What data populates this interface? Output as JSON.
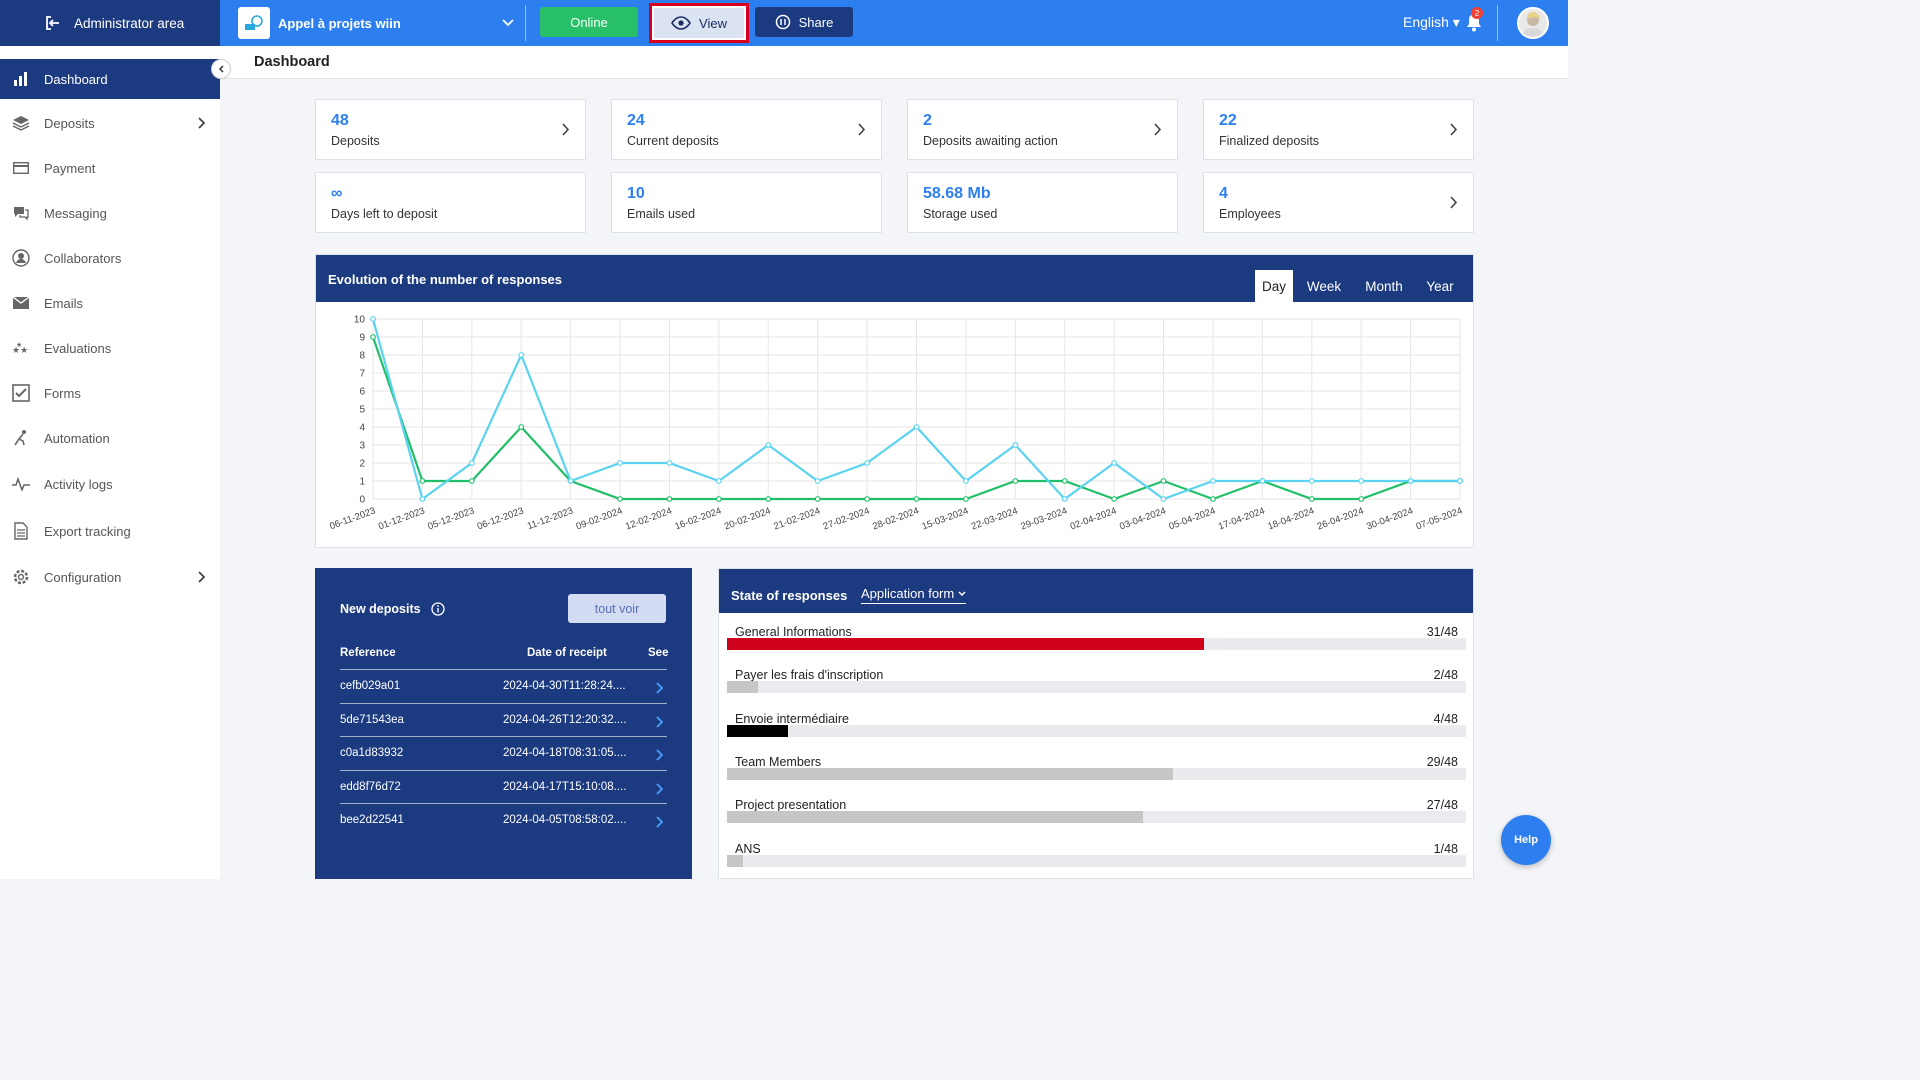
{
  "topbar": {
    "admin_label": "Administrator area",
    "project_name": "Appel à projets wiin",
    "online_label": "Online",
    "view_label": "View",
    "share_label": "Share",
    "language": "English",
    "notification_count": "2"
  },
  "sidebar": {
    "items": [
      {
        "label": "Dashboard",
        "icon": "bar-chart-icon",
        "active": true
      },
      {
        "label": "Deposits",
        "icon": "layers-icon",
        "has_submenu": true
      },
      {
        "label": "Payment",
        "icon": "credit-card-icon"
      },
      {
        "label": "Messaging",
        "icon": "chat-icon"
      },
      {
        "label": "Collaborators",
        "icon": "user-circle-icon"
      },
      {
        "label": "Emails",
        "icon": "envelope-icon"
      },
      {
        "label": "Evaluations",
        "icon": "stars-icon"
      },
      {
        "label": "Forms",
        "icon": "checkbox-icon"
      },
      {
        "label": "Automation",
        "icon": "automation-icon"
      },
      {
        "label": "Activity logs",
        "icon": "pulse-icon"
      },
      {
        "label": "Export tracking",
        "icon": "document-icon"
      },
      {
        "label": "Configuration",
        "icon": "gear-icon",
        "has_submenu": true
      }
    ]
  },
  "page": {
    "title": "Dashboard"
  },
  "stats": [
    {
      "value": "48",
      "label": "Deposits",
      "link": true
    },
    {
      "value": "24",
      "label": "Current deposits",
      "link": true
    },
    {
      "value": "2",
      "label": "Deposits awaiting action",
      "link": true
    },
    {
      "value": "22",
      "label": "Finalized deposits",
      "link": true
    },
    {
      "value": "∞",
      "label": "Days left to deposit",
      "link": false
    },
    {
      "value": "10",
      "label": "Emails used",
      "link": false
    },
    {
      "value": "58.68 Mb",
      "label": "Storage used",
      "link": false
    },
    {
      "value": "4",
      "label": "Employees",
      "link": true
    }
  ],
  "chart_panel": {
    "title": "Evolution of the number of responses",
    "tabs": [
      "Day",
      "Week",
      "Month",
      "Year"
    ],
    "active_tab": "Day"
  },
  "chart_data": {
    "type": "line",
    "categories": [
      "06-11-2023",
      "01-12-2023",
      "05-12-2023",
      "06-12-2023",
      "11-12-2023",
      "09-02-2024",
      "12-02-2024",
      "16-02-2024",
      "20-02-2024",
      "21-02-2024",
      "27-02-2024",
      "28-02-2024",
      "15-03-2024",
      "22-03-2024",
      "29-03-2024",
      "02-04-2024",
      "03-04-2024",
      "05-04-2024",
      "17-04-2024",
      "18-04-2024",
      "26-04-2024",
      "30-04-2024",
      "07-05-2024"
    ],
    "series": [
      {
        "color": "#5bd3f0",
        "values": [
          10,
          0,
          2,
          8,
          1,
          2,
          2,
          1,
          3,
          1,
          2,
          4,
          1,
          3,
          0,
          2,
          0,
          1,
          1,
          1,
          1,
          1,
          1
        ]
      },
      {
        "color": "#22bf6a",
        "values": [
          9,
          1,
          1,
          4,
          1,
          0,
          0,
          0,
          0,
          0,
          0,
          0,
          0,
          1,
          1,
          0,
          1,
          0,
          1,
          0,
          0,
          1,
          1
        ]
      }
    ],
    "ylim": [
      0,
      10
    ],
    "yticks": [
      0,
      1,
      2,
      3,
      4,
      5,
      6,
      7,
      8,
      9,
      10
    ],
    "grid": true
  },
  "new_deposits": {
    "title": "New deposits",
    "button": "tout voir",
    "headers": {
      "reference": "Reference",
      "date": "Date of receipt",
      "see": "See"
    },
    "rows": [
      {
        "ref": "cefb029a01",
        "date": "2024-04-30T11:28:24...."
      },
      {
        "ref": "5de71543ea",
        "date": "2024-04-26T12:20:32...."
      },
      {
        "ref": "c0a1d83932",
        "date": "2024-04-18T08:31:05...."
      },
      {
        "ref": "edd8f76d72",
        "date": "2024-04-17T15:10:08...."
      },
      {
        "ref": "bee2d22541",
        "date": "2024-04-05T08:58:02...."
      }
    ]
  },
  "state_of_responses": {
    "title": "State of responses",
    "selected_form": "Application form",
    "items": [
      {
        "name": "General Informations",
        "count": "31/48",
        "fraction": 0.646,
        "color": "#d0021b"
      },
      {
        "name": "Payer les frais d'inscription",
        "count": "2/48",
        "fraction": 0.042,
        "color": "#c6c6c6"
      },
      {
        "name": "Envoie intermédiaire",
        "count": "4/48",
        "fraction": 0.083,
        "color": "#000000"
      },
      {
        "name": "Team Members",
        "count": "29/48",
        "fraction": 0.604,
        "color": "#c6c6c6"
      },
      {
        "name": "Project presentation",
        "count": "27/48",
        "fraction": 0.563,
        "color": "#c6c6c6"
      },
      {
        "name": "ANS",
        "count": "1/48",
        "fraction": 0.021,
        "color": "#c6c6c6"
      }
    ]
  },
  "help": {
    "label": "Help"
  }
}
